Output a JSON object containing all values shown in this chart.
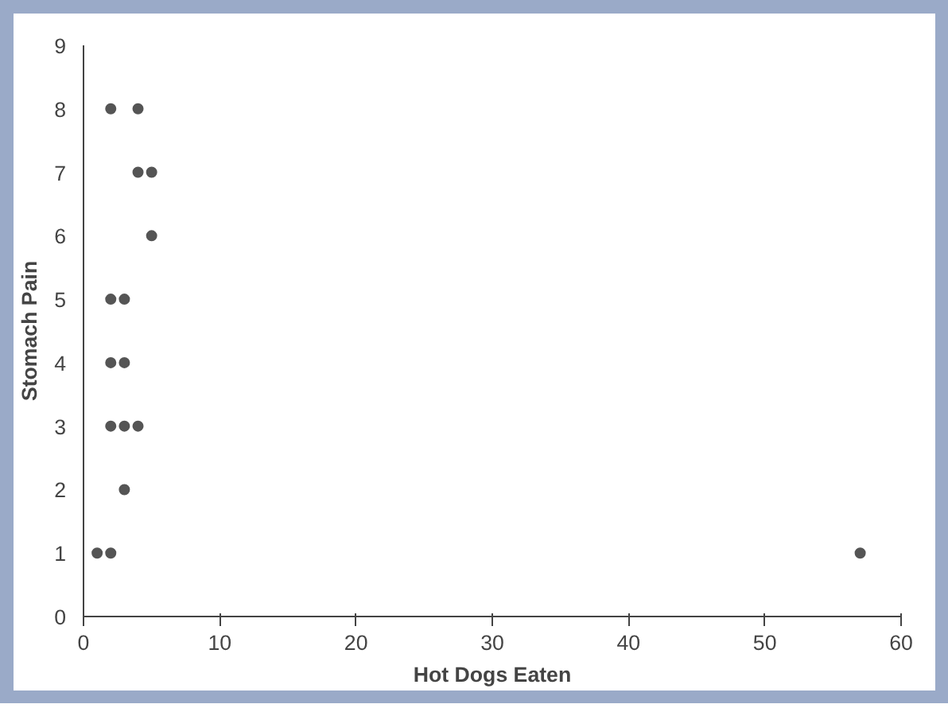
{
  "chart_data": {
    "type": "scatter",
    "xlabel": "Hot Dogs Eaten",
    "ylabel": "Stomach Pain",
    "series": [
      {
        "color": "#555555",
        "x": [
          2,
          4,
          4,
          5,
          5,
          2,
          3,
          2,
          3,
          2,
          3,
          4,
          3,
          1,
          2,
          57
        ],
        "values": [
          8,
          8,
          7,
          7,
          6,
          5,
          5,
          4,
          4,
          3,
          3,
          3,
          2,
          1,
          1,
          1
        ]
      }
    ],
    "xlim": [
      0,
      60
    ],
    "xticks": [
      0,
      10,
      20,
      30,
      40,
      50,
      60
    ],
    "ylim": [
      0,
      9
    ],
    "yticks": [
      0,
      1,
      2,
      3,
      4,
      5,
      6,
      7,
      8,
      9
    ],
    "grid": false,
    "marker": "circle"
  }
}
